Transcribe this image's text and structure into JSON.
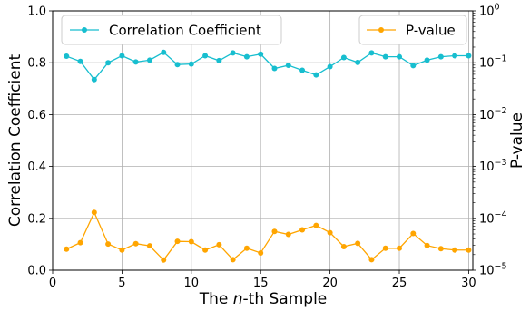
{
  "chart_data": {
    "type": "line",
    "xlabel_pre": "The ",
    "xlabel_italic": "n",
    "xlabel_post": "-th Sample",
    "ylabel": "Correlation Coefficient",
    "y2label": "P-value",
    "xlim": [
      0,
      30.3
    ],
    "ylim": [
      0,
      1.0
    ],
    "y2lim_exponent": [
      -5,
      0
    ],
    "y2_scale": "log",
    "grid": true,
    "xticks": [
      "0",
      "5",
      "10",
      "15",
      "20",
      "25",
      "30"
    ],
    "yticks": [
      "0.0",
      "0.2",
      "0.4",
      "0.6",
      "0.8",
      "1.0"
    ],
    "y2ticks": [
      {
        "base": "10",
        "exp": "−5"
      },
      {
        "base": "10",
        "exp": "−4"
      },
      {
        "base": "10",
        "exp": "−3"
      },
      {
        "base": "10",
        "exp": "−2"
      },
      {
        "base": "10",
        "exp": "−1"
      },
      {
        "base": "10",
        "exp": "0"
      }
    ],
    "x": [
      1,
      2,
      3,
      4,
      5,
      6,
      7,
      8,
      9,
      10,
      11,
      12,
      13,
      14,
      15,
      16,
      17,
      18,
      19,
      20,
      21,
      22,
      23,
      24,
      25,
      26,
      27,
      28,
      29,
      30
    ],
    "series": [
      {
        "name": "Correlation Coefficient",
        "axis": "left",
        "color": "#17becf",
        "legend_position": "upper-left",
        "values": [
          0.825,
          0.805,
          0.735,
          0.8,
          0.827,
          0.803,
          0.81,
          0.84,
          0.793,
          0.795,
          0.827,
          0.808,
          0.838,
          0.823,
          0.833,
          0.778,
          0.79,
          0.771,
          0.753,
          0.785,
          0.82,
          0.801,
          0.838,
          0.823,
          0.823,
          0.789,
          0.81,
          0.823,
          0.827,
          0.827
        ]
      },
      {
        "name": "P-value",
        "axis": "right",
        "color": "#ffa500",
        "legend_position": "upper-right",
        "values": [
          2.55e-05,
          3.4e-05,
          0.00013,
          3.2e-05,
          2.45e-05,
          3.25e-05,
          2.95e-05,
          1.57e-05,
          3.6e-05,
          3.55e-05,
          2.45e-05,
          3.1e-05,
          1.6e-05,
          2.65e-05,
          2.15e-05,
          5.6e-05,
          4.9e-05,
          6e-05,
          7.3e-05,
          5.3e-05,
          2.85e-05,
          3.3e-05,
          1.6e-05,
          2.65e-05,
          2.65e-05,
          5.1e-05,
          3e-05,
          2.6e-05,
          2.45e-05,
          2.45e-05
        ]
      }
    ]
  }
}
